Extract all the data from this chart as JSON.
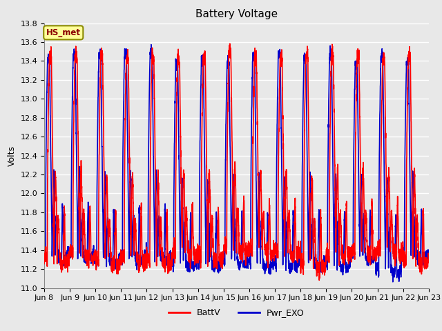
{
  "title": "Battery Voltage",
  "ylabel": "Volts",
  "xlabel": "",
  "xlim": [
    0,
    15.0
  ],
  "ylim": [
    11.0,
    13.8
  ],
  "yticks": [
    11.0,
    11.2,
    11.4,
    11.6,
    11.8,
    12.0,
    12.2,
    12.4,
    12.6,
    12.8,
    13.0,
    13.2,
    13.4,
    13.6,
    13.8
  ],
  "xtick_labels": [
    "Jun 8",
    "Jun 9",
    "Jun 10",
    "Jun 11",
    "Jun 12",
    "Jun 13",
    "Jun 14",
    "Jun 15",
    "Jun 16",
    "Jun 17",
    "Jun 18",
    "Jun 19",
    "Jun 20",
    "Jun 21",
    "Jun 22",
    "Jun 23"
  ],
  "xtick_positions": [
    0,
    1,
    2,
    3,
    4,
    5,
    6,
    7,
    8,
    9,
    10,
    11,
    12,
    13,
    14,
    15
  ],
  "line1_color": "#FF0000",
  "line2_color": "#0000CC",
  "line1_label": "BattV",
  "line2_label": "Pwr_EXO",
  "line_width": 1.2,
  "plot_bg_color": "#E8E8E8",
  "grid_color": "#FFFFFF",
  "annotation_text": "HS_met",
  "annotation_bbox_facecolor": "#FFFF99",
  "annotation_bbox_edgecolor": "#8B8B00",
  "title_fontsize": 11,
  "axis_fontsize": 9,
  "tick_fontsize": 8
}
